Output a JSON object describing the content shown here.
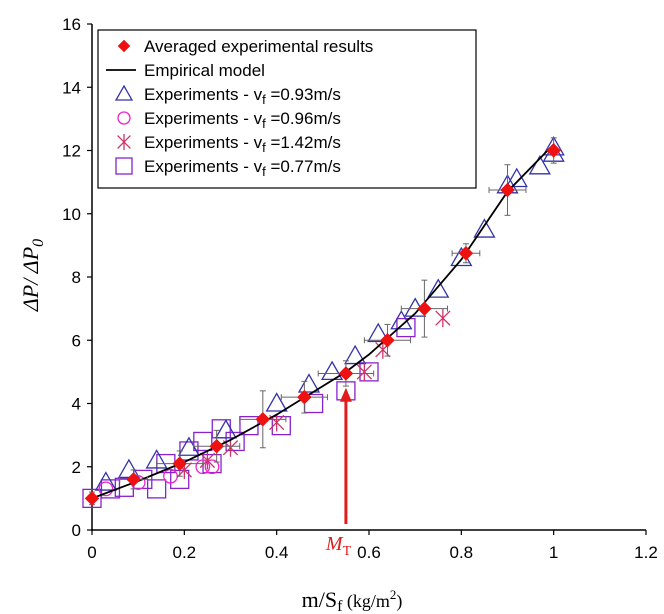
{
  "chart_data": {
    "type": "scatter",
    "xlabel": "m/Sf (kg/m2)",
    "xlabel_parts": {
      "main": "m/S",
      "sub": "f",
      "unit": " (kg/m",
      "sup": "2",
      "close": ")"
    },
    "ylabel": "ΔP/ ΔP0",
    "ylabel_parts": {
      "main": "ΔP/ ΔP",
      "sub": "0"
    },
    "xlim": [
      0,
      1.2
    ],
    "ylim": [
      0,
      16
    ],
    "x_ticks": [
      "0",
      "0.2",
      "0.4",
      "0.6",
      "0.8",
      "1",
      "1.2"
    ],
    "y_ticks": [
      "0",
      "2",
      "4",
      "6",
      "8",
      "10",
      "12",
      "14",
      "16"
    ],
    "grid": false,
    "legend_position": "top-left",
    "legend": [
      {
        "label": "Averaged experimental results",
        "marker": "diamond",
        "color": "#ee1111"
      },
      {
        "label": "Empirical model",
        "marker": "line",
        "color": "#000000"
      },
      {
        "label": "Experiments - vf  =0.93m/s",
        "prefix": "Experiments - v",
        "sub": "f",
        "suffix": "  =0.93m/s",
        "marker": "triangle",
        "color": "#3333aa"
      },
      {
        "label": "Experiments - vf  =0.96m/s",
        "prefix": "Experiments - v",
        "sub": "f",
        "suffix": "  =0.96m/s",
        "marker": "circle",
        "color": "#ee22cc"
      },
      {
        "label": "Experiments - vf  =1.42m/s",
        "prefix": "Experiments - v",
        "sub": "f",
        "suffix": "  =1.42m/s",
        "marker": "star",
        "color": "#cc3366"
      },
      {
        "label": "Experiments - vf  =0.77m/s",
        "prefix": "Experiments - v",
        "sub": "f",
        "suffix": "  =0.77m/s",
        "marker": "square",
        "color": "#8822cc"
      }
    ],
    "series": [
      {
        "name": "Averaged experimental results",
        "marker": "diamond",
        "color": "#ee1111",
        "x": [
          0.0,
          0.09,
          0.19,
          0.27,
          0.37,
          0.46,
          0.55,
          0.64,
          0.72,
          0.81,
          0.9,
          1.0
        ],
        "y": [
          1.0,
          1.6,
          2.1,
          2.65,
          3.5,
          4.2,
          4.95,
          6.0,
          7.0,
          8.75,
          10.75,
          12.0
        ],
        "xerr": [
          0.0,
          0.03,
          0.05,
          0.05,
          0.05,
          0.05,
          0.06,
          0.05,
          0.05,
          0.03,
          0.04,
          0.0
        ],
        "yerr": [
          0.2,
          0.3,
          0.4,
          0.5,
          0.9,
          0.5,
          0.4,
          0.5,
          0.9,
          0.3,
          0.8,
          0.4
        ]
      },
      {
        "name": "Empirical model",
        "marker": "line",
        "color": "#000000",
        "x": [
          0.0,
          0.1,
          0.2,
          0.3,
          0.4,
          0.5,
          0.55,
          0.6,
          0.7,
          0.8,
          0.9,
          1.0
        ],
        "y": [
          1.0,
          1.55,
          2.15,
          2.85,
          3.65,
          4.55,
          5.0,
          5.55,
          6.85,
          8.55,
          10.7,
          12.2
        ]
      },
      {
        "name": "Experiments - vf =0.93m/s",
        "marker": "triangle",
        "color": "#3333aa",
        "x": [
          0.03,
          0.08,
          0.14,
          0.21,
          0.29,
          0.4,
          0.47,
          0.52,
          0.57,
          0.62,
          0.67,
          0.7,
          0.75,
          0.8,
          0.85,
          0.9,
          0.92,
          0.97,
          1.0,
          1.0
        ],
        "y": [
          1.5,
          1.9,
          2.2,
          2.6,
          3.15,
          4.0,
          4.6,
          5.0,
          5.5,
          6.2,
          6.6,
          7.0,
          7.6,
          8.6,
          9.5,
          10.9,
          11.1,
          11.5,
          11.9,
          12.1
        ]
      },
      {
        "name": "Experiments - vf =0.96m/s",
        "marker": "circle",
        "color": "#ee22cc",
        "x": [
          0.03,
          0.1,
          0.17,
          0.24,
          0.26
        ],
        "y": [
          1.3,
          1.5,
          1.7,
          2.0,
          2.0
        ]
      },
      {
        "name": "Experiments - vf =1.42m/s",
        "marker": "star",
        "color": "#cc3366",
        "x": [
          0.2,
          0.25,
          0.3,
          0.4,
          0.59,
          0.63,
          0.76
        ],
        "y": [
          1.9,
          2.2,
          2.6,
          3.4,
          5.0,
          5.7,
          6.7
        ]
      },
      {
        "name": "Experiments - vf =0.77m/s",
        "marker": "square",
        "color": "#8822cc",
        "x": [
          0.0,
          0.04,
          0.07,
          0.11,
          0.14,
          0.16,
          0.19,
          0.21,
          0.24,
          0.26,
          0.28,
          0.31,
          0.34,
          0.41,
          0.48,
          0.55,
          0.6,
          0.68
        ],
        "y": [
          1.0,
          1.3,
          1.35,
          1.6,
          1.3,
          2.1,
          1.6,
          2.5,
          2.8,
          2.1,
          3.2,
          2.8,
          3.3,
          3.3,
          4.0,
          4.4,
          5.0,
          6.4
        ]
      }
    ],
    "annotation": {
      "label_main": "M",
      "label_sub": "T",
      "x": 0.55,
      "y_from": 0.0,
      "y_to": 4.5,
      "color": "#e21b1b"
    }
  }
}
